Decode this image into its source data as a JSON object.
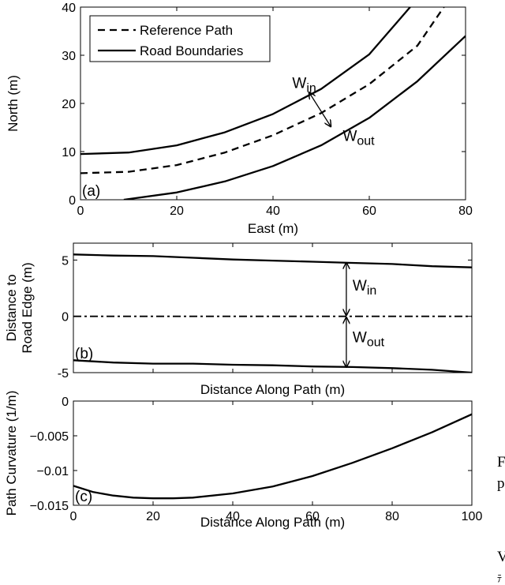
{
  "chart_data": [
    {
      "panel_label": "(a)",
      "type": "line",
      "xlabel": "East (m)",
      "ylabel": "North (m)",
      "xlim": [
        0,
        80
      ],
      "ylim": [
        0,
        40
      ],
      "xticks": [
        0,
        20,
        40,
        60,
        80
      ],
      "yticks": [
        0,
        10,
        20,
        30,
        40
      ],
      "grid": false,
      "legend_position": "top-left",
      "legend": [
        {
          "label": "Reference Path",
          "style": "dashed"
        },
        {
          "label": "Road Boundaries",
          "style": "solid"
        }
      ],
      "series": [
        {
          "name": "Reference Path",
          "style": "dashed",
          "x": [
            0,
            10,
            20,
            30,
            40,
            50,
            60,
            70,
            75.5
          ],
          "y": [
            5.5,
            5.8,
            7.2,
            9.8,
            13.4,
            18.0,
            24.0,
            32.0,
            40.0
          ]
        },
        {
          "name": "Road Boundaries",
          "style": "solid",
          "x": [
            0,
            10,
            20,
            30,
            40,
            50,
            60,
            68.5
          ],
          "y": [
            9.5,
            9.8,
            11.3,
            14.0,
            17.8,
            23.0,
            30.2,
            40.0
          ]
        },
        {
          "name": "Road Boundaries",
          "style": "solid",
          "x": [
            9,
            20,
            30,
            40,
            50,
            60,
            70,
            80
          ],
          "y": [
            0,
            1.5,
            3.8,
            7.0,
            11.3,
            17.0,
            24.6,
            34.0
          ]
        }
      ],
      "annotations": [
        {
          "text": "W",
          "subscript": "in"
        },
        {
          "text": "W",
          "subscript": "out"
        }
      ]
    },
    {
      "panel_label": "(b)",
      "type": "line",
      "xlabel": "Distance Along Path (m)",
      "ylabel": [
        "Distance to",
        "Road Edge (m)"
      ],
      "xlim": [
        0,
        100
      ],
      "ylim": [
        -5,
        6.5
      ],
      "yticks": [
        5,
        0,
        -5
      ],
      "grid": false,
      "series": [
        {
          "name": "inner edge",
          "style": "solid",
          "x": [
            0,
            10,
            20,
            30,
            40,
            50,
            60,
            70,
            80,
            90,
            100
          ],
          "y": [
            5.5,
            5.4,
            5.35,
            5.2,
            5.05,
            4.95,
            4.85,
            4.75,
            4.65,
            4.45,
            4.35
          ]
        },
        {
          "name": "reference",
          "style": "dashdot",
          "x": [
            0,
            100
          ],
          "y": [
            0,
            0
          ]
        },
        {
          "name": "outer edge",
          "style": "solid",
          "x": [
            0,
            10,
            20,
            30,
            40,
            50,
            60,
            70,
            80,
            90,
            100
          ],
          "y": [
            -3.9,
            -4.1,
            -4.2,
            -4.2,
            -4.3,
            -4.35,
            -4.45,
            -4.5,
            -4.6,
            -4.75,
            -5.0
          ]
        }
      ],
      "annotations": [
        {
          "text": "W",
          "subscript": "in"
        },
        {
          "text": "W",
          "subscript": "out"
        }
      ]
    },
    {
      "panel_label": "(c)",
      "type": "line",
      "xlabel": "Distance Along Path (m)",
      "ylabel": "Path Curvature (1/m)",
      "xlim": [
        0,
        100
      ],
      "ylim": [
        -0.015,
        0
      ],
      "xticks": [
        0,
        20,
        40,
        60,
        80,
        100
      ],
      "yticks": [
        0,
        -0.005,
        -0.01,
        -0.015
      ],
      "ytick_labels": [
        "0",
        "−0.005",
        "−0.01",
        "−0.015"
      ],
      "grid": false,
      "series": [
        {
          "name": "curvature",
          "style": "solid",
          "x": [
            0,
            5,
            10,
            15,
            20,
            25,
            30,
            40,
            50,
            60,
            70,
            80,
            90,
            100
          ],
          "y": [
            -0.0122,
            -0.0131,
            -0.0136,
            -0.0139,
            -0.014,
            -0.014,
            -0.0139,
            -0.0133,
            -0.0123,
            -0.0108,
            -0.0089,
            -0.0068,
            -0.0045,
            -0.0019
          ]
        }
      ]
    }
  ],
  "page_fragments": [
    "F",
    "p",
    "V",
    "ﾃ"
  ]
}
